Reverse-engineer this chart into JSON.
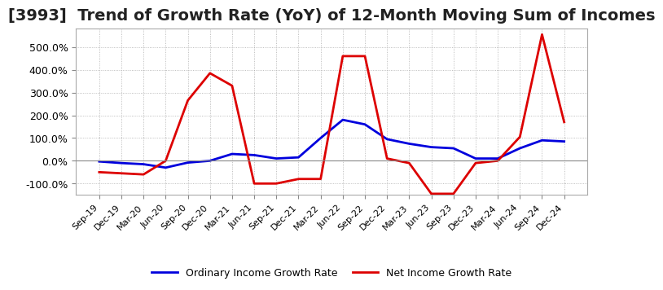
{
  "title": "[3993]  Trend of Growth Rate (YoY) of 12-Month Moving Sum of Incomes",
  "title_fontsize": 14,
  "ylim": [
    -150,
    580
  ],
  "yticks": [
    -100,
    0,
    100,
    200,
    300,
    400,
    500
  ],
  "background_color": "#ffffff",
  "grid_color": "#aaaaaa",
  "legend": [
    "Ordinary Income Growth Rate",
    "Net Income Growth Rate"
  ],
  "line_colors": [
    "#0000dd",
    "#dd0000"
  ],
  "line_width": 2.0,
  "x_labels": [
    "Sep-19",
    "Dec-19",
    "Mar-20",
    "Jun-20",
    "Sep-20",
    "Dec-20",
    "Mar-21",
    "Jun-21",
    "Sep-21",
    "Dec-21",
    "Mar-22",
    "Jun-22",
    "Sep-22",
    "Dec-22",
    "Mar-23",
    "Jun-23",
    "Sep-23",
    "Dec-23",
    "Mar-24",
    "Jun-24",
    "Sep-24",
    "Dec-24"
  ],
  "ordinary_income_growth": [
    -3,
    -10,
    -15,
    -30,
    -8,
    0,
    30,
    25,
    10,
    15,
    100,
    180,
    160,
    95,
    75,
    60,
    55,
    10,
    10,
    55,
    90,
    85
  ],
  "net_income_growth": [
    -50,
    -55,
    -60,
    0,
    265,
    385,
    330,
    -100,
    -100,
    -80,
    -80,
    460,
    460,
    10,
    -10,
    -145,
    -145,
    -10,
    0,
    105,
    555,
    170
  ]
}
